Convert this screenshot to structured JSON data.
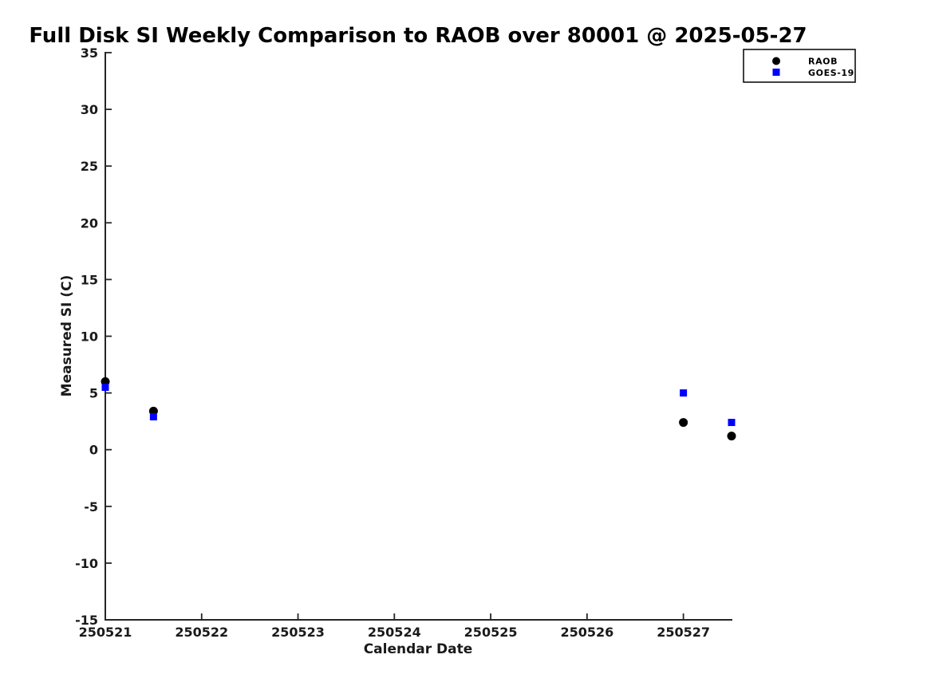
{
  "figure": {
    "background": "#ffffff"
  },
  "chart_data": {
    "type": "scatter",
    "title": "Full Disk SI Weekly Comparison to RAOB over 80001 @ 2025-05-27",
    "xlabel": "Calendar Date",
    "ylabel": "Measured SI (C)",
    "xlim": [
      250521,
      250527.5
    ],
    "ylim": [
      -15,
      35
    ],
    "xticks": [
      250521,
      250522,
      250523,
      250524,
      250525,
      250526,
      250527
    ],
    "yticks": [
      -15,
      -10,
      -5,
      0,
      5,
      10,
      15,
      20,
      25,
      30,
      35
    ],
    "grid": false,
    "legend_position": "top-right-outside",
    "series": [
      {
        "name": "RAOB",
        "marker": "circle",
        "color": "#000000",
        "x": [
          250521.0,
          250521.5,
          250527.0,
          250527.5
        ],
        "y": [
          6.0,
          3.4,
          2.4,
          1.2
        ]
      },
      {
        "name": "GOES-19",
        "marker": "square",
        "color": "#0000ff",
        "x": [
          250521.0,
          250521.5,
          250527.0,
          250527.5
        ],
        "y": [
          5.5,
          2.9,
          5.0,
          2.4
        ]
      }
    ]
  }
}
